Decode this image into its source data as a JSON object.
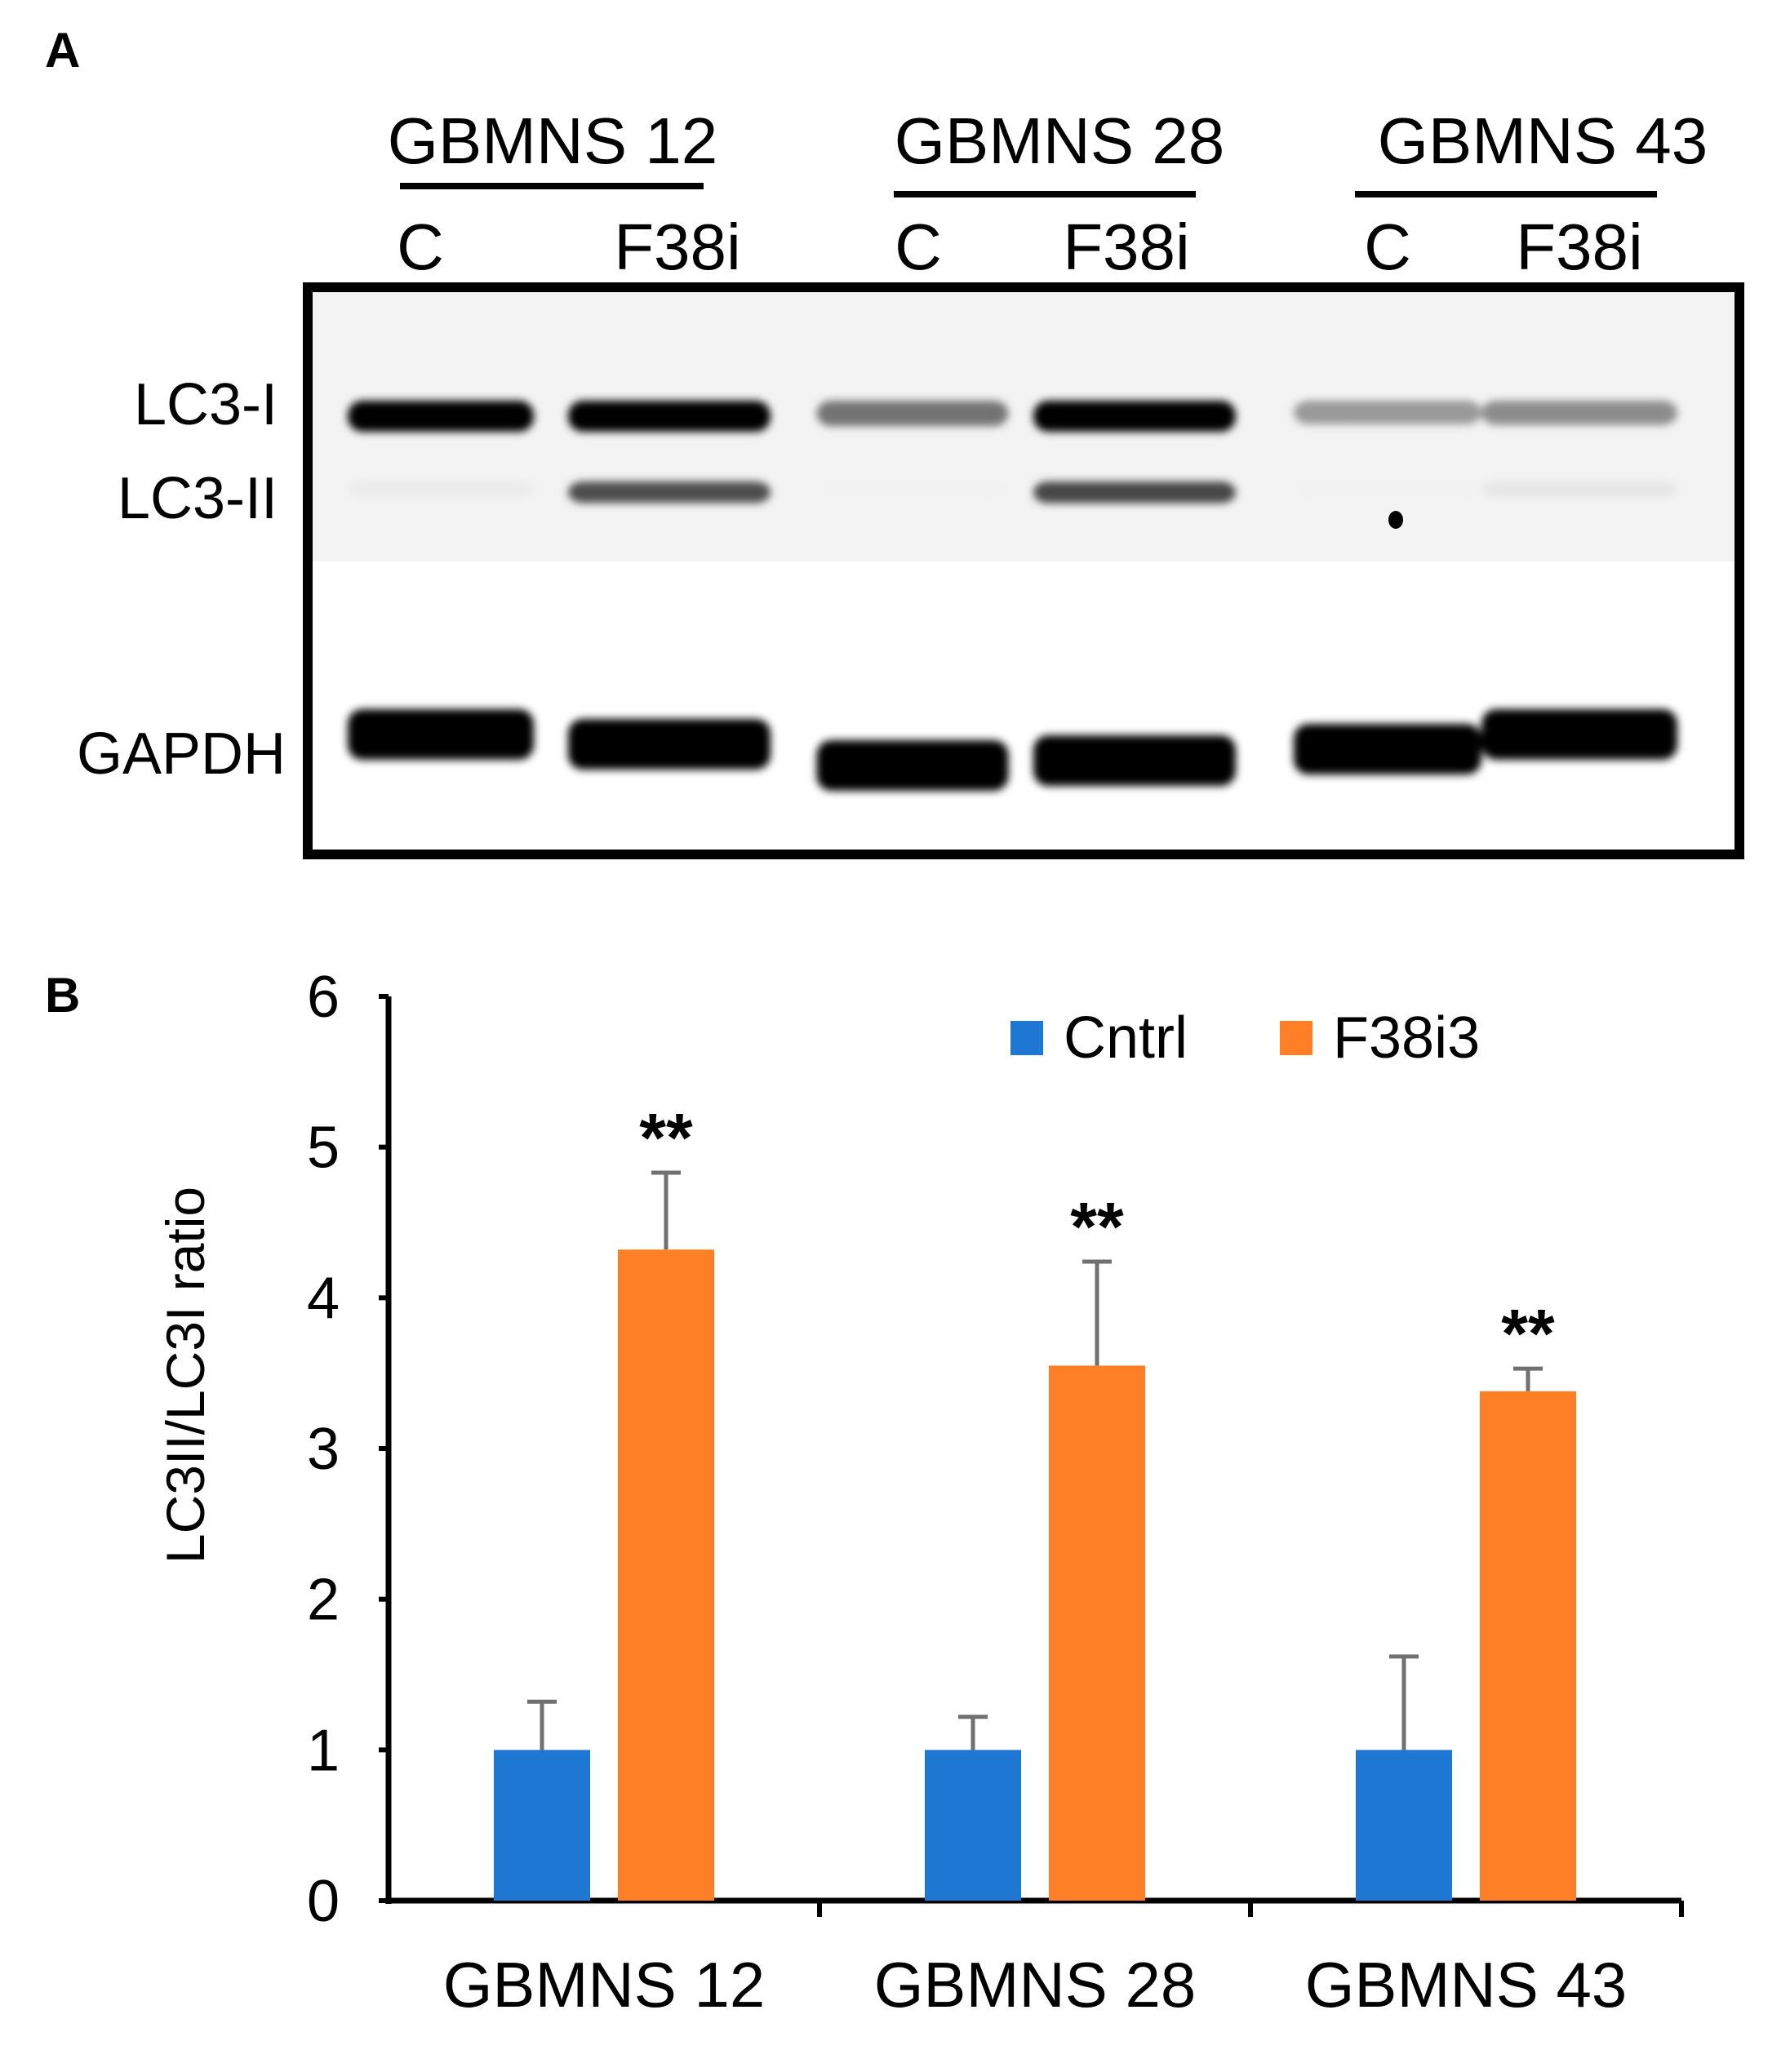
{
  "panel_a": {
    "letter": "A",
    "groups": [
      {
        "name": "GBMNS 12",
        "lanes": [
          "C",
          "F38i"
        ]
      },
      {
        "name": "GBMNS 28",
        "lanes": [
          "C",
          "F38i"
        ]
      },
      {
        "name": "GBMNS 43",
        "lanes": [
          "C",
          "F38i"
        ]
      }
    ],
    "band_labels": {
      "lc3_i": "LC3-I",
      "lc3_ii": "LC3-II",
      "gapdh": "GAPDH"
    },
    "band_intensity": {
      "lc3_i": [
        1.0,
        1.0,
        0.55,
        1.0,
        0.4,
        0.45
      ],
      "lc3_ii": [
        0.08,
        0.7,
        0.05,
        0.72,
        0.05,
        0.1
      ],
      "gapdh": [
        1.0,
        1.0,
        1.0,
        1.0,
        1.0,
        1.0
      ]
    }
  },
  "chart_data": {
    "letter": "B",
    "type": "bar",
    "categories": [
      "GBMNS 12",
      "GBMNS 28",
      "GBMNS 43"
    ],
    "series": [
      {
        "name": "Cntrl",
        "color": "#1f77d4",
        "values": [
          1.0,
          1.0,
          1.0
        ],
        "errors": [
          0.32,
          0.22,
          0.62
        ]
      },
      {
        "name": "F38i3",
        "color": "#ff7f27",
        "values": [
          4.32,
          3.55,
          3.38
        ],
        "errors": [
          0.51,
          0.69,
          0.15
        ]
      }
    ],
    "significance": [
      "**",
      "**",
      "**"
    ],
    "ylabel": "LC3II/LC3I ratio",
    "xlabel": "",
    "ylim": [
      0,
      6
    ],
    "yticks": [
      "0",
      "1",
      "2",
      "3",
      "4",
      "5",
      "6"
    ],
    "legend_position": "top-right",
    "grid": false,
    "error_bar_color": "#707070"
  }
}
